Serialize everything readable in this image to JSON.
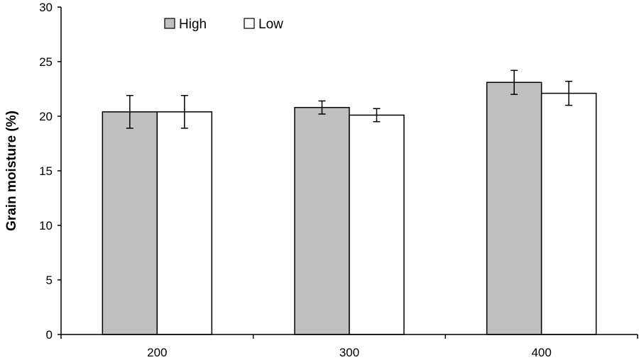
{
  "chart_data": {
    "type": "bar",
    "title": "",
    "xlabel": "",
    "ylabel": "Grain moisture (%)",
    "ylim": [
      0,
      30
    ],
    "yticks": [
      0,
      5,
      10,
      15,
      20,
      25,
      30
    ],
    "categories": [
      "200",
      "300",
      "400"
    ],
    "grid": false,
    "legend_position": "top-left",
    "series": [
      {
        "name": "High",
        "color": "#c0c0c0",
        "values": [
          20.4,
          20.8,
          23.1
        ],
        "errors": [
          1.5,
          0.6,
          1.1
        ]
      },
      {
        "name": "Low",
        "color": "#ffffff",
        "values": [
          20.4,
          20.1,
          22.1
        ],
        "errors": [
          1.5,
          0.6,
          1.1
        ]
      }
    ]
  }
}
